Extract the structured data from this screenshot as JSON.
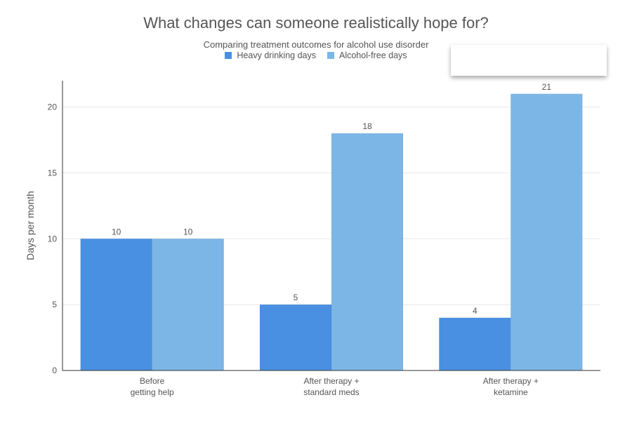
{
  "colors": {
    "heavy": "#4a90e2",
    "free": "#7cb6e6",
    "text": "#555555",
    "grid": "#e8e8e8",
    "axis": "#333333"
  },
  "chart_data": {
    "type": "bar",
    "title": "What changes can someone realistically hope for?",
    "subtitle": "Comparing treatment outcomes for alcohol use disorder",
    "xlabel": "",
    "ylabel": "Days per month",
    "ylim": [
      0,
      22
    ],
    "yticks": [
      0,
      5,
      10,
      15,
      20
    ],
    "grid": true,
    "legend_position": "top-center",
    "categories": [
      [
        "Before",
        "getting help"
      ],
      [
        "After therapy +",
        "standard meds"
      ],
      [
        "After therapy +",
        "ketamine"
      ]
    ],
    "series": [
      {
        "name": "Heavy drinking days",
        "values": [
          10,
          5,
          4
        ]
      },
      {
        "name": "Alcohol-free days",
        "values": [
          10,
          18,
          21
        ]
      }
    ]
  }
}
